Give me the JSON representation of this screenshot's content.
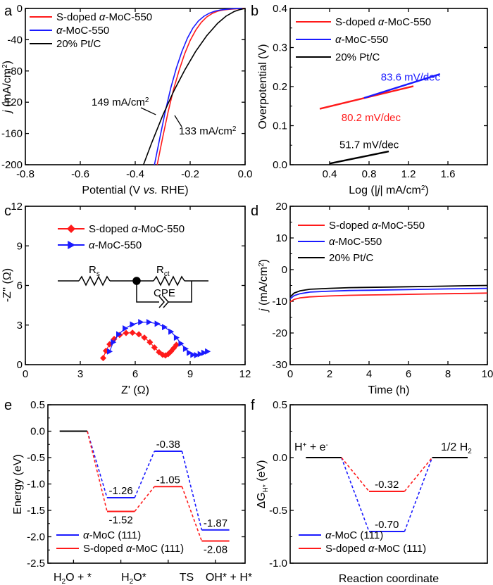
{
  "colors": {
    "red": "#ff1a1a",
    "blue": "#1a1aff",
    "black": "#000000"
  },
  "chart_data": [
    {
      "id": "a",
      "panel_label": "a",
      "type": "line",
      "xlabel_parts": [
        [
          "Potential (V ",
          ""
        ],
        [
          "vs.",
          "i"
        ],
        [
          " RHE)",
          ""
        ]
      ],
      "ylabel_parts": [
        [
          "j",
          "i"
        ],
        [
          " (mA/cm",
          ""
        ],
        [
          "2",
          "sup"
        ],
        [
          ")",
          ""
        ]
      ],
      "xlim": [
        -0.8,
        0.0
      ],
      "ylim": [
        -200,
        0
      ],
      "xticks": [
        "-0.8",
        "-0.6",
        "-0.4",
        "-0.2",
        "0.0"
      ],
      "yticks": [
        "-200",
        "-160",
        "-120",
        "-80",
        "-40",
        "0"
      ],
      "legend": [
        {
          "label_parts": [
            [
              "S-doped ",
              ""
            ],
            [
              "α",
              "i"
            ],
            [
              "-MoC-550",
              ""
            ]
          ],
          "color": "red"
        },
        {
          "label_parts": [
            [
              "α",
              "i"
            ],
            [
              "-MoC-550",
              ""
            ]
          ],
          "color": "blue"
        },
        {
          "label_parts": [
            [
              "20% Pt/C",
              ""
            ]
          ],
          "color": "black"
        }
      ],
      "series": [
        {
          "color": "red",
          "x": [
            -0.32,
            -0.3,
            -0.28,
            -0.26,
            -0.24,
            -0.22,
            -0.2,
            -0.18,
            -0.16,
            -0.14,
            -0.12,
            -0.1,
            -0.08,
            -0.06,
            -0.04,
            -0.02,
            0.0
          ],
          "y": [
            -200,
            -165,
            -132,
            -103,
            -79,
            -58,
            -41,
            -28,
            -18,
            -11,
            -6.5,
            -3.5,
            -2,
            -1.2,
            -0.6,
            -0.3,
            0
          ]
        },
        {
          "color": "blue",
          "x": [
            -0.33,
            -0.31,
            -0.29,
            -0.27,
            -0.25,
            -0.23,
            -0.21,
            -0.19,
            -0.17,
            -0.15,
            -0.13,
            -0.11,
            -0.09,
            -0.07,
            -0.05,
            -0.03,
            -0.01
          ],
          "y": [
            -200,
            -165,
            -131,
            -101,
            -76,
            -55,
            -38,
            -25,
            -16,
            -10,
            -6,
            -3.5,
            -2,
            -1.1,
            -0.5,
            -0.2,
            0
          ]
        },
        {
          "color": "black",
          "x": [
            -0.37,
            -0.34,
            -0.3,
            -0.26,
            -0.22,
            -0.18,
            -0.14,
            -0.1,
            -0.07,
            -0.04,
            -0.02,
            0.0
          ],
          "y": [
            -200,
            -172,
            -137,
            -106,
            -79,
            -55,
            -35,
            -19,
            -10,
            -4,
            -1.5,
            0
          ]
        }
      ],
      "annotations": [
        {
          "label_parts": [
            [
              "149 mA/cm",
              ""
            ],
            [
              "2",
              "sup"
            ]
          ],
          "at": [
            -0.79,
            -125
          ],
          "arrow_to": [
            -0.325,
            -136
          ]
        },
        {
          "label_parts": [
            [
              "133 mA/cm",
              ""
            ],
            [
              "2",
              "sup"
            ]
          ],
          "at": [
            -0.31,
            -168
          ],
          "arrow_to": [
            -0.31,
            -136
          ]
        }
      ]
    },
    {
      "id": "b",
      "panel_label": "b",
      "type": "line",
      "xlabel_parts": [
        [
          "Log (|",
          ""
        ],
        [
          "j",
          "i"
        ],
        [
          "| mA/cm",
          ""
        ],
        [
          "2",
          "sup"
        ],
        [
          ")",
          ""
        ]
      ],
      "ylabel_parts": [
        [
          "Overpotential (V)",
          ""
        ]
      ],
      "xlim": [
        0.0,
        2.0
      ],
      "ylim": [
        0.0,
        0.4
      ],
      "xticks": [
        "0.4",
        "0.8",
        "1.2",
        "1.6"
      ],
      "yticks": [
        "0.0",
        "0.1",
        "0.2",
        "0.3",
        "0.4"
      ],
      "legend": [
        {
          "label_parts": [
            [
              "S-doped ",
              ""
            ],
            [
              "α",
              "i"
            ],
            [
              "-MoC-550",
              ""
            ]
          ],
          "color": "red"
        },
        {
          "label_parts": [
            [
              "α",
              "i"
            ],
            [
              "-MoC-550",
              ""
            ]
          ],
          "color": "blue"
        },
        {
          "label_parts": [
            [
              "20% Pt/C",
              ""
            ]
          ],
          "color": "black"
        }
      ],
      "series": [
        {
          "color": "red",
          "x": [
            0.3,
            1.25
          ],
          "y": [
            0.143,
            0.201
          ]
        },
        {
          "color": "blue",
          "x": [
            0.75,
            1.52
          ],
          "y": [
            0.171,
            0.232
          ]
        },
        {
          "color": "black",
          "x": [
            0.4,
            1.0
          ],
          "y": [
            0.003,
            0.034
          ]
        }
      ],
      "annotations": [
        {
          "label_parts": [
            [
              "83.6 mV/dec",
              ""
            ]
          ],
          "color": "blue",
          "at": [
            0.92,
            0.215
          ]
        },
        {
          "label_parts": [
            [
              "80.2 mV/dec",
              ""
            ]
          ],
          "color": "red",
          "at": [
            0.52,
            0.112
          ]
        },
        {
          "label_parts": [
            [
              "51.7 mV/dec",
              ""
            ]
          ],
          "color": "black",
          "at": [
            0.5,
            0.042
          ]
        }
      ]
    },
    {
      "id": "c",
      "panel_label": "c",
      "type": "scatter",
      "xlabel_parts": [
        [
          "Z' (Ω)",
          ""
        ]
      ],
      "ylabel_parts": [
        [
          "-Z'' (Ω)",
          ""
        ]
      ],
      "xlim": [
        0,
        12
      ],
      "ylim": [
        0,
        12
      ],
      "xticks": [
        "0",
        "3",
        "6",
        "9",
        "12"
      ],
      "yticks": [
        "0",
        "3",
        "6",
        "9",
        "12"
      ],
      "legend": [
        {
          "label_parts": [
            [
              "S-doped ",
              ""
            ],
            [
              "α",
              "i"
            ],
            [
              "-MoC-550",
              ""
            ]
          ],
          "color": "red",
          "marker": "diamond"
        },
        {
          "label_parts": [
            [
              "α",
              "i"
            ],
            [
              "-MoC-550",
              ""
            ]
          ],
          "color": "blue",
          "marker": "triangle-right"
        }
      ],
      "series": [
        {
          "color": "red",
          "marker": "diamond",
          "x": [
            4.25,
            4.4,
            4.6,
            4.85,
            5.15,
            5.5,
            5.85,
            6.2,
            6.5,
            6.8,
            7.05,
            7.3,
            7.5,
            7.65,
            7.8,
            7.95,
            8.1,
            8.25
          ],
          "y": [
            0.5,
            1.05,
            1.55,
            1.95,
            2.25,
            2.4,
            2.42,
            2.3,
            2.05,
            1.7,
            1.3,
            0.95,
            0.75,
            0.7,
            0.8,
            1.0,
            1.25,
            1.5
          ]
        },
        {
          "color": "blue",
          "marker": "triangle-right",
          "x": [
            4.6,
            4.8,
            5.1,
            5.45,
            5.85,
            6.3,
            6.75,
            7.2,
            7.6,
            7.95,
            8.25,
            8.5,
            8.75,
            8.95,
            9.15,
            9.35,
            9.55,
            9.75,
            9.95
          ],
          "y": [
            1.0,
            1.7,
            2.3,
            2.75,
            3.05,
            3.22,
            3.22,
            3.1,
            2.85,
            2.5,
            2.05,
            1.6,
            1.2,
            0.9,
            0.75,
            0.72,
            0.8,
            0.9,
            1.0
          ]
        }
      ],
      "circuit": {
        "rs": "R",
        "rs_sub": "s",
        "rct": "R",
        "rct_sub": "ct",
        "cpe": "CPE"
      }
    },
    {
      "id": "d",
      "panel_label": "d",
      "type": "line",
      "xlabel_parts": [
        [
          "Time (h)",
          ""
        ]
      ],
      "ylabel_parts": [
        [
          "j",
          "i"
        ],
        [
          " (mA/cm",
          ""
        ],
        [
          "2",
          "sup"
        ],
        [
          ")",
          ""
        ]
      ],
      "xlim": [
        0,
        10
      ],
      "ylim": [
        -30,
        20
      ],
      "xticks": [
        "0",
        "2",
        "4",
        "6",
        "8",
        "10"
      ],
      "yticks": [
        "-30",
        "-20",
        "-10",
        "0",
        "10",
        "20"
      ],
      "legend": [
        {
          "label_parts": [
            [
              "S-doped ",
              ""
            ],
            [
              "α",
              "i"
            ],
            [
              "-MoC-550",
              ""
            ]
          ],
          "color": "red"
        },
        {
          "label_parts": [
            [
              "α",
              "i"
            ],
            [
              "-MoC-550",
              ""
            ]
          ],
          "color": "blue"
        },
        {
          "label_parts": [
            [
              "20% Pt/C",
              ""
            ]
          ],
          "color": "black"
        }
      ],
      "series": [
        {
          "color": "red",
          "x": [
            0,
            0.2,
            0.5,
            1,
            2,
            3,
            4,
            5,
            6,
            7,
            8,
            9,
            10
          ],
          "y": [
            -10.2,
            -9.4,
            -8.9,
            -8.6,
            -8.3,
            -8.1,
            -8.0,
            -7.9,
            -7.8,
            -7.7,
            -7.6,
            -7.5,
            -7.4
          ]
        },
        {
          "color": "blue",
          "x": [
            0,
            0.2,
            0.5,
            1,
            2,
            3,
            4,
            5,
            6,
            7,
            8,
            9,
            10
          ],
          "y": [
            -9.2,
            -8.2,
            -7.6,
            -7.1,
            -6.8,
            -6.6,
            -6.5,
            -6.4,
            -6.3,
            -6.2,
            -6.1,
            -6.0,
            -5.9
          ]
        },
        {
          "color": "black",
          "x": [
            0,
            0.2,
            0.5,
            1,
            2,
            3,
            4,
            5,
            6,
            7,
            8,
            9,
            10
          ],
          "y": [
            -8.6,
            -7.4,
            -6.7,
            -6.2,
            -5.9,
            -5.7,
            -5.6,
            -5.5,
            -5.4,
            -5.3,
            -5.2,
            -5.1,
            -5.0
          ]
        }
      ]
    },
    {
      "id": "e",
      "panel_label": "e",
      "type": "line",
      "xlabel_parts": [],
      "ylabel_parts": [
        [
          "Energy (eV)",
          ""
        ]
      ],
      "xlim": [
        0,
        5
      ],
      "ylim": [
        -2.5,
        0.5
      ],
      "yticks": [
        "-2.5",
        "-2.0",
        "-1.5",
        "-1.0",
        "-0.5",
        "0.0",
        "0.5"
      ],
      "categories": [
        [
          [
            "H",
            ""
          ],
          [
            "2",
            "sub"
          ],
          [
            "O + *",
            ""
          ]
        ],
        [
          [
            "H",
            ""
          ],
          [
            "2",
            "sub"
          ],
          [
            "O*",
            ""
          ]
        ],
        [
          [
            "TS",
            ""
          ]
        ],
        [
          [
            "OH* + H*",
            ""
          ]
        ]
      ],
      "levels_x": [
        [
          0.3,
          1.0
        ],
        [
          1.5,
          2.2
        ],
        [
          2.7,
          3.4
        ],
        [
          3.9,
          4.6
        ]
      ],
      "legend": [
        {
          "label_parts": [
            [
              "α",
              "i"
            ],
            [
              "-MoC (111)",
              ""
            ]
          ],
          "color": "blue"
        },
        {
          "label_parts": [
            [
              "S-doped ",
              ""
            ],
            [
              "α",
              "i"
            ],
            [
              "-MoC (111)",
              ""
            ]
          ],
          "color": "red"
        }
      ],
      "series": [
        {
          "color": "blue",
          "values": [
            0.0,
            -1.26,
            -0.38,
            -1.87
          ],
          "labels": [
            "",
            "-1.26",
            "-0.38",
            "-1.87"
          ],
          "label_pos": [
            "",
            "above",
            "above",
            "above"
          ]
        },
        {
          "color": "red",
          "values": [
            0.0,
            -1.52,
            -1.05,
            -2.08
          ],
          "labels": [
            "",
            "-1.52",
            "-1.05",
            "-2.08"
          ],
          "label_pos": [
            "",
            "below",
            "above",
            "below"
          ]
        }
      ]
    },
    {
      "id": "f",
      "panel_label": "f",
      "type": "line",
      "xlabel_parts": [
        [
          "Reaction coordinate",
          ""
        ]
      ],
      "ylabel_parts": [
        [
          "ΔG",
          ""
        ],
        [
          "H*",
          "sub"
        ],
        [
          " (eV)",
          ""
        ]
      ],
      "xlim": [
        0,
        5
      ],
      "ylim": [
        -1.0,
        0.5
      ],
      "yticks": [
        "-1.0",
        "-0.5",
        "0.0",
        "0.5"
      ],
      "level_labels": [
        [
          [
            "H",
            ""
          ],
          [
            "+",
            "sup"
          ],
          [
            " + e",
            ""
          ],
          [
            "-",
            "sup"
          ]
        ],
        [
          [
            "1/2 H",
            ""
          ],
          [
            "2",
            "sub"
          ]
        ]
      ],
      "levels_x": [
        [
          0.4,
          1.3
        ],
        [
          2.0,
          2.9
        ],
        [
          3.6,
          4.5
        ]
      ],
      "legend": [
        {
          "label_parts": [
            [
              "α",
              "i"
            ],
            [
              "-MoC (111)",
              ""
            ]
          ],
          "color": "blue"
        },
        {
          "label_parts": [
            [
              "S-doped ",
              ""
            ],
            [
              "α",
              "i"
            ],
            [
              "-MoC (111)",
              ""
            ]
          ],
          "color": "red"
        }
      ],
      "series": [
        {
          "color": "blue",
          "values": [
            0.0,
            -0.7,
            0.0
          ],
          "labels": [
            "",
            "-0.70",
            ""
          ],
          "label_pos": [
            "",
            "above",
            ""
          ]
        },
        {
          "color": "red",
          "values": [
            0.0,
            -0.32,
            0.0
          ],
          "labels": [
            "",
            "-0.32",
            ""
          ],
          "label_pos": [
            "",
            "above",
            ""
          ]
        }
      ]
    }
  ]
}
